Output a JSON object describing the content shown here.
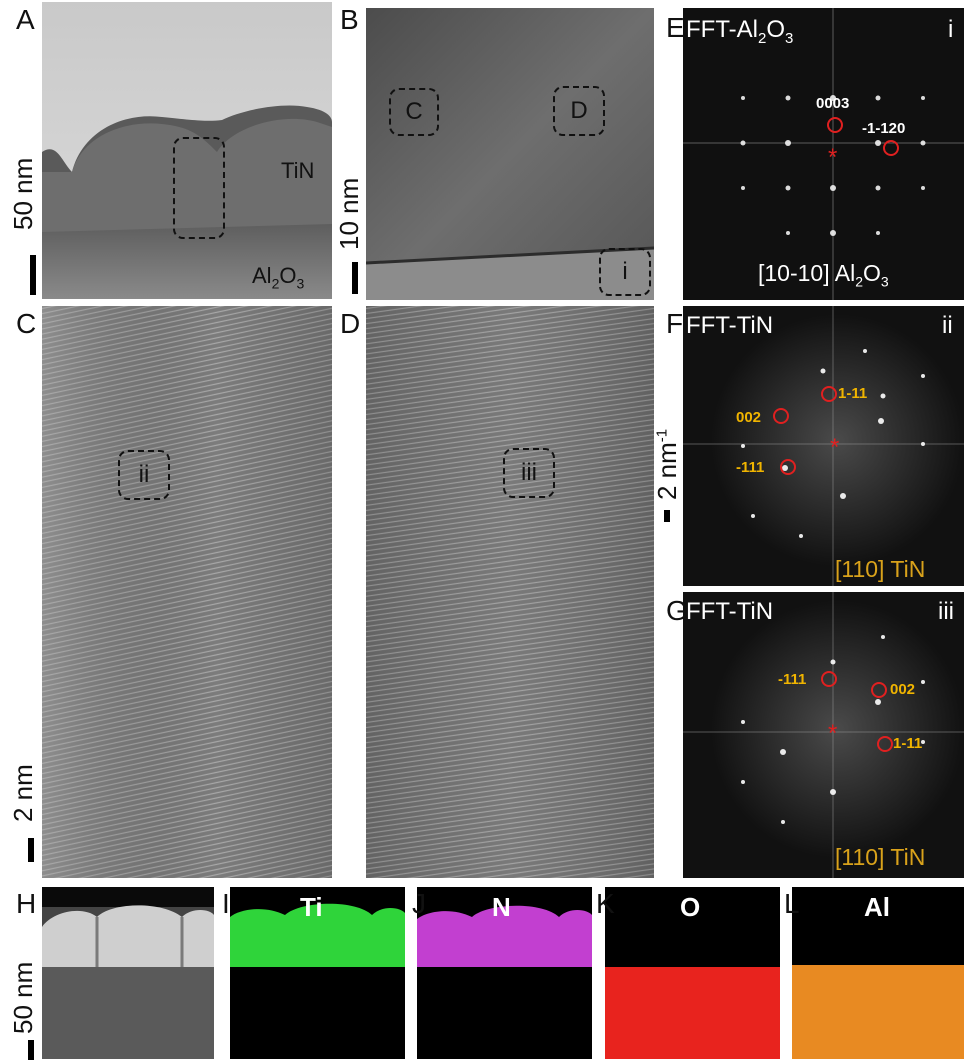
{
  "panels": {
    "A": {
      "label": "A",
      "tin": "TiN",
      "al2o3_base": "Al",
      "al2o3_sub": "2",
      "al2o3_tail": "O",
      "al2o3_sub2": "3"
    },
    "B": {
      "label": "B",
      "roi_c": "C",
      "roi_d": "D",
      "roi_i": "i"
    },
    "C": {
      "label": "C",
      "roi_ii": "ii"
    },
    "D": {
      "label": "D",
      "roi_iii": "iii"
    },
    "E": {
      "label": "E",
      "title_base": "FFT-Al",
      "title_sub": "2",
      "title_tail": "O",
      "title_sub2": "3",
      "roman": "i",
      "spot1": "0003",
      "spot2": "-1-120",
      "zone_base": "[10-10] Al",
      "zone_sub": "2",
      "zone_tail": "O",
      "zone_sub2": "3"
    },
    "F": {
      "label": "F",
      "title": "FFT-TiN",
      "roman": "ii",
      "spot1": "1-11",
      "spot2": "002",
      "spot3": "-111",
      "zone": "[110] TiN"
    },
    "G": {
      "label": "G",
      "title": "FFT-TiN",
      "roman": "iii",
      "spot1": "-111",
      "spot2": "002",
      "spot3": "1-11",
      "zone": "[110] TiN"
    },
    "H": {
      "label": "H"
    },
    "I": {
      "label": "I",
      "element": "Ti"
    },
    "J": {
      "label": "J",
      "element": "N"
    },
    "K": {
      "label": "K",
      "element": "O"
    },
    "L": {
      "label": "L",
      "element": "Al"
    }
  },
  "scalebars": {
    "a": "50 nm",
    "b": "10 nm",
    "c": "2 nm",
    "f_base": "2 nm",
    "f_sup": "-1",
    "h": "50 nm"
  },
  "colors": {
    "spot_ring": "#e02020",
    "center_star": "#e02020",
    "fft_label_white": "#ffffff",
    "fft_label_orange": "#f0b400",
    "zone_orange": "#d9a21b",
    "ti_map": "#2fd43a",
    "n_map": "#c23fd0",
    "o_map": "#e8231e",
    "al_map": "#e88a22"
  }
}
